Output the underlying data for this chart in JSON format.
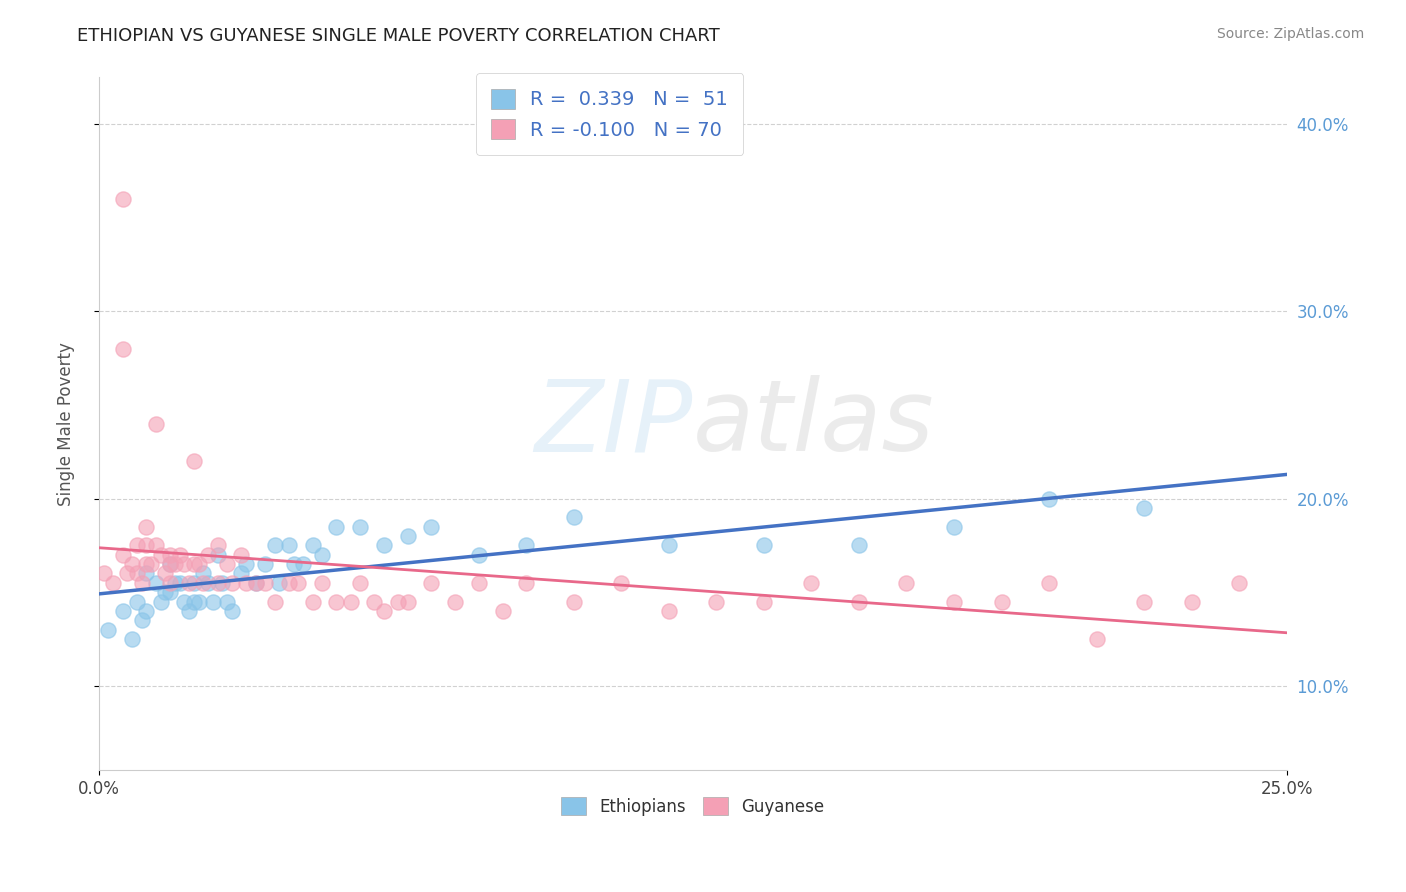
{
  "title": "ETHIOPIAN VS GUYANESE SINGLE MALE POVERTY CORRELATION CHART",
  "source": "Source: ZipAtlas.com",
  "xlim": [
    0.0,
    0.25
  ],
  "ylim": [
    0.055,
    0.425
  ],
  "ethiopian_R": 0.339,
  "ethiopian_N": 51,
  "guyanese_R": -0.1,
  "guyanese_N": 70,
  "ethiopian_color": "#89C4E8",
  "guyanese_color": "#F4A0B5",
  "ethiopian_line_color": "#4472C4",
  "guyanese_line_color": "#E8688A",
  "watermark_color": "#D8E8F0",
  "ylabel": "Single Male Poverty",
  "background_color": "#FFFFFF",
  "plot_bg_color": "#FFFFFF",
  "grid_color": "#CCCCCC",
  "right_tick_color": "#5B9BD5",
  "legend_text_color": "#4472C4",
  "title_color": "#222222",
  "source_color": "#888888",
  "yticks": [
    0.1,
    0.2,
    0.3,
    0.4
  ],
  "ethiopian_scatter_x": [
    0.002,
    0.005,
    0.007,
    0.008,
    0.009,
    0.01,
    0.01,
    0.012,
    0.013,
    0.014,
    0.015,
    0.015,
    0.016,
    0.017,
    0.018,
    0.019,
    0.02,
    0.02,
    0.021,
    0.022,
    0.023,
    0.024,
    0.025,
    0.026,
    0.027,
    0.028,
    0.03,
    0.031,
    0.033,
    0.035,
    0.037,
    0.038,
    0.04,
    0.041,
    0.043,
    0.045,
    0.047,
    0.05,
    0.055,
    0.06,
    0.065,
    0.07,
    0.08,
    0.09,
    0.1,
    0.12,
    0.14,
    0.16,
    0.18,
    0.2,
    0.22
  ],
  "ethiopian_scatter_y": [
    0.13,
    0.14,
    0.125,
    0.145,
    0.135,
    0.16,
    0.14,
    0.155,
    0.145,
    0.15,
    0.165,
    0.15,
    0.155,
    0.155,
    0.145,
    0.14,
    0.155,
    0.145,
    0.145,
    0.16,
    0.155,
    0.145,
    0.17,
    0.155,
    0.145,
    0.14,
    0.16,
    0.165,
    0.155,
    0.165,
    0.175,
    0.155,
    0.175,
    0.165,
    0.165,
    0.175,
    0.17,
    0.185,
    0.185,
    0.175,
    0.18,
    0.185,
    0.17,
    0.175,
    0.19,
    0.175,
    0.175,
    0.175,
    0.185,
    0.2,
    0.195
  ],
  "guyanese_scatter_x": [
    0.001,
    0.003,
    0.005,
    0.005,
    0.005,
    0.006,
    0.007,
    0.008,
    0.008,
    0.009,
    0.01,
    0.01,
    0.01,
    0.011,
    0.012,
    0.012,
    0.013,
    0.014,
    0.015,
    0.015,
    0.015,
    0.016,
    0.017,
    0.018,
    0.019,
    0.02,
    0.02,
    0.021,
    0.022,
    0.023,
    0.025,
    0.025,
    0.027,
    0.028,
    0.03,
    0.031,
    0.033,
    0.035,
    0.037,
    0.04,
    0.042,
    0.045,
    0.047,
    0.05,
    0.053,
    0.055,
    0.058,
    0.06,
    0.063,
    0.065,
    0.07,
    0.075,
    0.08,
    0.085,
    0.09,
    0.1,
    0.11,
    0.12,
    0.13,
    0.14,
    0.15,
    0.16,
    0.17,
    0.18,
    0.19,
    0.2,
    0.21,
    0.22,
    0.23,
    0.24
  ],
  "guyanese_scatter_y": [
    0.16,
    0.155,
    0.36,
    0.28,
    0.17,
    0.16,
    0.165,
    0.175,
    0.16,
    0.155,
    0.185,
    0.175,
    0.165,
    0.165,
    0.24,
    0.175,
    0.17,
    0.16,
    0.17,
    0.165,
    0.155,
    0.165,
    0.17,
    0.165,
    0.155,
    0.22,
    0.165,
    0.165,
    0.155,
    0.17,
    0.175,
    0.155,
    0.165,
    0.155,
    0.17,
    0.155,
    0.155,
    0.155,
    0.145,
    0.155,
    0.155,
    0.145,
    0.155,
    0.145,
    0.145,
    0.155,
    0.145,
    0.14,
    0.145,
    0.145,
    0.155,
    0.145,
    0.155,
    0.14,
    0.155,
    0.145,
    0.155,
    0.14,
    0.145,
    0.145,
    0.155,
    0.145,
    0.155,
    0.145,
    0.145,
    0.155,
    0.125,
    0.145,
    0.145,
    0.155
  ]
}
